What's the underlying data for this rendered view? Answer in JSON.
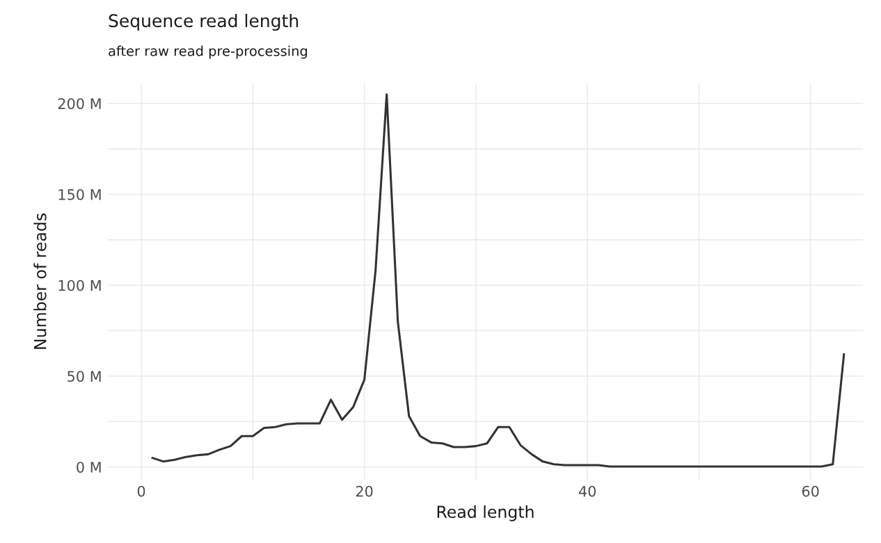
{
  "chart_data": {
    "type": "line",
    "title": "Sequence read length",
    "subtitle": "after raw read pre-processing",
    "xlabel": "Read length",
    "ylabel": "Number of reads",
    "x": [
      1,
      2,
      3,
      4,
      5,
      6,
      7,
      8,
      9,
      10,
      11,
      12,
      13,
      14,
      15,
      16,
      17,
      18,
      19,
      20,
      21,
      22,
      23,
      24,
      25,
      26,
      27,
      28,
      29,
      30,
      31,
      32,
      33,
      34,
      35,
      36,
      37,
      38,
      39,
      40,
      41,
      42,
      43,
      44,
      45,
      46,
      47,
      48,
      49,
      50,
      51,
      52,
      53,
      54,
      55,
      56,
      57,
      58,
      59,
      60,
      61,
      62,
      63
    ],
    "series": [
      {
        "color": "#333333",
        "values": [
          5,
          3,
          4,
          5.5,
          6.5,
          7,
          9.5,
          11.5,
          17,
          17,
          21.5,
          22,
          23.5,
          24,
          24,
          24,
          37,
          26,
          33,
          48,
          108,
          205,
          80,
          28,
          17,
          13.5,
          13,
          11,
          11,
          11.5,
          13,
          22,
          22,
          12,
          7,
          3,
          1.5,
          1,
          1,
          1,
          1,
          0.3,
          0.3,
          0.3,
          0.3,
          0.3,
          0.3,
          0.3,
          0.3,
          0.3,
          0.3,
          0.3,
          0.3,
          0.3,
          0.3,
          0.3,
          0.3,
          0.3,
          0.3,
          0.3,
          0.3,
          1.5,
          62
        ]
      }
    ],
    "xlim": [
      -3,
      64.7
    ],
    "ylim": [
      -7,
      211
    ],
    "xticks": [
      0,
      {
        "value": 10,
        "label": null
      },
      20,
      {
        "value": 30,
        "label": null
      },
      40,
      {
        "value": 50,
        "label": null
      },
      60
    ],
    "yticks": [
      {
        "value": 0,
        "label": "0 M"
      },
      {
        "value": 25,
        "label": null
      },
      {
        "value": 50,
        "label": "50 M"
      },
      {
        "value": 75,
        "label": null
      },
      {
        "value": 100,
        "label": "100 M"
      },
      {
        "value": 125,
        "label": null
      },
      {
        "value": 150,
        "label": "150 M"
      },
      {
        "value": 175,
        "label": null
      },
      {
        "value": 200,
        "label": "200 M"
      }
    ],
    "grid": true,
    "legend": false,
    "marker": "none",
    "line_style": "solid"
  }
}
